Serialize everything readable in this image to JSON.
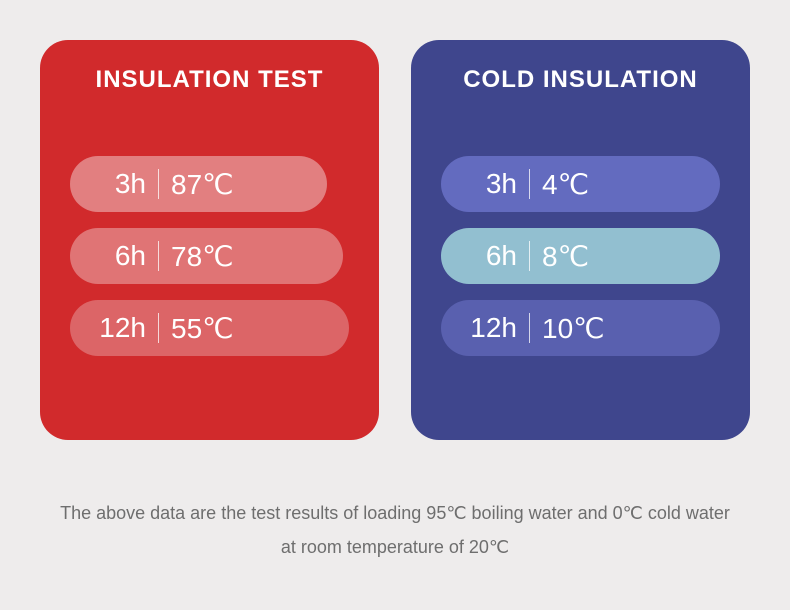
{
  "background_color": "#eeecec",
  "hot": {
    "title": "INSULATION TEST",
    "card_bg": "#d12a2c",
    "rows": [
      {
        "time": "3h",
        "temp": "87℃",
        "width_pct": 92,
        "bg": "#e27f80"
      },
      {
        "time": "6h",
        "temp": "78℃",
        "width_pct": 98,
        "bg": "#e07475"
      },
      {
        "time": "12h",
        "temp": "55℃",
        "width_pct": 100,
        "bg": "#dc6567"
      }
    ]
  },
  "cold": {
    "title": "COLD INSULATION",
    "card_bg": "#3f468d",
    "rows": [
      {
        "time": "3h",
        "temp": "4℃",
        "width_pct": 100,
        "bg": "#636bbf"
      },
      {
        "time": "6h",
        "temp": "8℃",
        "width_pct": 100,
        "bg": "#92bfd0"
      },
      {
        "time": "12h",
        "temp": "10℃",
        "width_pct": 100,
        "bg": "#5960af"
      }
    ]
  },
  "footnote": {
    "text": "The above data are the test results of loading 95℃ boiling water and 0℃ cold water at room temperature of 20℃",
    "color": "#6e6e6e"
  }
}
